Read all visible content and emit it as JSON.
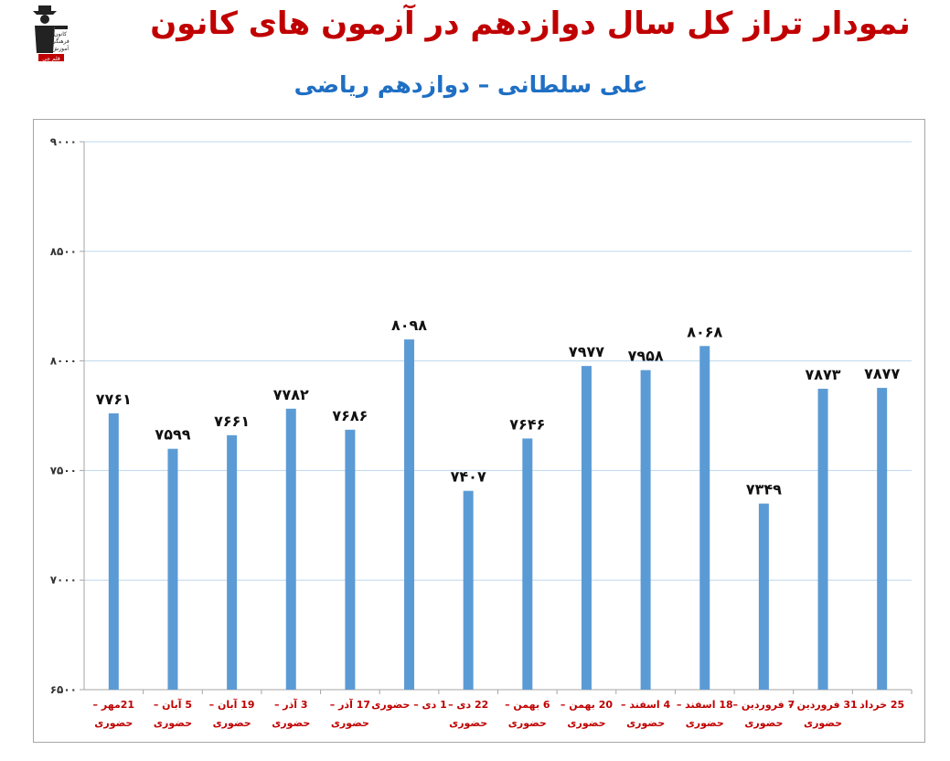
{
  "header": {
    "title": "نمودار تراز کل سال دوازدهم در آزمون های کانون",
    "subtitle": "علی سلطانی – دوازدهم ریاضی",
    "logo_lines": [
      "کانون",
      "فرهنگی",
      "آموزش"
    ],
    "logo_badge": "قلم چی"
  },
  "chart_data": {
    "type": "bar",
    "categories": [
      [
        "21مهر –",
        "حضوری"
      ],
      [
        "5 آبان –",
        "حضوری"
      ],
      [
        "19 آبان –",
        "حضوری"
      ],
      [
        "3 آذر –",
        "حضوری"
      ],
      [
        "17 آذر –",
        "حضوری"
      ],
      [
        "1 دی – حضوری"
      ],
      [
        "22 دی –",
        "حضوری"
      ],
      [
        "6 بهمن –",
        "حضوری"
      ],
      [
        "20 بهمن –",
        "حضوری"
      ],
      [
        "4 اسفند –",
        "حضوری"
      ],
      [
        "18 اسفند –",
        "حضوری"
      ],
      [
        "7 فروردین –",
        "حضوری"
      ],
      [
        "31 فروردین –",
        "حضوری"
      ],
      [
        "25 خرداد"
      ]
    ],
    "values": [
      7761,
      7599,
      7661,
      7782,
      7686,
      8098,
      7407,
      7646,
      7977,
      7958,
      8068,
      7349,
      7873,
      7877
    ],
    "data_labels": [
      "۷۷۶۱",
      "۷۵۹۹",
      "۷۶۶۱",
      "۷۷۸۲",
      "۷۶۸۶",
      "۸۰۹۸",
      "۷۴۰۷",
      "۷۶۴۶",
      "۷۹۷۷",
      "۷۹۵۸",
      "۸۰۶۸",
      "۷۳۴۹",
      "۷۸۷۳",
      "۷۸۷۷"
    ],
    "ylim": [
      6500,
      9000
    ],
    "yticks": [
      6500,
      7000,
      7500,
      8000,
      8500,
      9000
    ],
    "ytick_labels": [
      "۶۵۰۰",
      "۷۰۰۰",
      "۷۵۰۰",
      "۸۰۰۰",
      "۸۵۰۰",
      "۹۰۰۰"
    ],
    "grid": true,
    "bar_color": "#5b9bd5",
    "label_color": "#c00000"
  }
}
